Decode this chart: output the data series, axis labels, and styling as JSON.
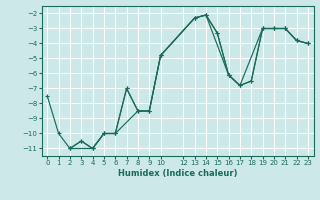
{
  "xlabel": "Humidex (Indice chaleur)",
  "bg_color": "#cce8e8",
  "line_color": "#1a6b5a",
  "grid_color": "#ffffff",
  "xlim": [
    -0.5,
    23.5
  ],
  "ylim": [
    -11.5,
    -1.5
  ],
  "xticks": [
    0,
    1,
    2,
    3,
    4,
    5,
    6,
    7,
    8,
    9,
    10,
    12,
    13,
    14,
    15,
    16,
    17,
    18,
    19,
    20,
    21,
    22,
    23
  ],
  "yticks": [
    -2,
    -3,
    -4,
    -5,
    -6,
    -7,
    -8,
    -9,
    -10,
    -11
  ],
  "series": [
    {
      "x": [
        0,
        1,
        2,
        3,
        4,
        5,
        6,
        7,
        8,
        9,
        10,
        13,
        14,
        15,
        16,
        17,
        19,
        20,
        21,
        22,
        23
      ],
      "y": [
        -7.5,
        -10,
        -11,
        -10.5,
        -11,
        -10,
        -10,
        -7.0,
        -8.5,
        -8.5,
        -4.8,
        -2.3,
        -2.1,
        -3.3,
        -6.1,
        -6.8,
        -3.0,
        -3.0,
        -3.0,
        -3.8,
        -4.0
      ]
    },
    {
      "x": [
        2,
        3,
        4,
        5,
        6,
        7,
        8,
        9,
        10,
        13,
        14,
        15,
        16,
        17,
        18,
        19,
        20,
        21,
        22,
        23
      ],
      "y": [
        -11,
        -10.5,
        -11,
        -10,
        -10,
        -7.0,
        -8.5,
        -8.5,
        -4.8,
        -2.3,
        -2.1,
        -3.3,
        -6.1,
        -6.8,
        -6.5,
        -3.0,
        -3.0,
        -3.0,
        -3.8,
        -4.0
      ]
    },
    {
      "x": [
        2,
        4,
        5,
        6,
        8,
        9,
        10,
        13,
        14,
        16,
        17,
        18,
        19,
        20,
        21,
        22,
        23
      ],
      "y": [
        -11,
        -11,
        -10,
        -10,
        -8.5,
        -8.5,
        -4.8,
        -2.3,
        -2.1,
        -6.1,
        -6.8,
        -6.5,
        -3.0,
        -3.0,
        -3.0,
        -3.8,
        -4.0
      ]
    }
  ]
}
